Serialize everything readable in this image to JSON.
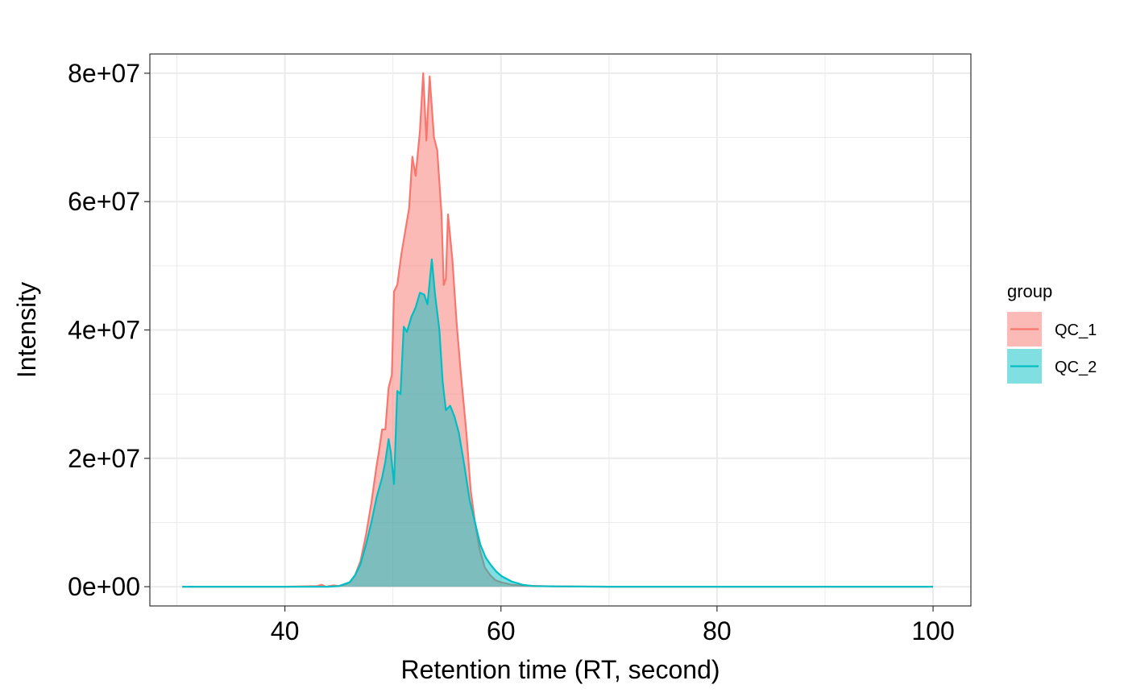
{
  "chart_data": {
    "type": "area",
    "title": "",
    "xlabel": "Retention time (RT, second)",
    "ylabel": "Intensity",
    "xlim": [
      27.5,
      103.5
    ],
    "ylim": [
      -3000000,
      83000000
    ],
    "x_ticks": [
      40,
      60,
      80,
      100
    ],
    "x_tick_labels": [
      "40",
      "60",
      "80",
      "100"
    ],
    "y_ticks": [
      0,
      20000000,
      40000000,
      60000000,
      80000000
    ],
    "y_tick_labels": [
      "0e+00",
      "2e+07",
      "4e+07",
      "6e+07",
      "8e+07"
    ],
    "grid": true,
    "legend": {
      "title": "group",
      "position": "right"
    },
    "series": [
      {
        "name": "QC_1",
        "color": "#F8766D",
        "fill": "#F8766D",
        "points": [
          [
            30.5,
            0
          ],
          [
            35,
            0
          ],
          [
            40,
            0
          ],
          [
            43,
            100000
          ],
          [
            43.4,
            300000
          ],
          [
            43.8,
            0
          ],
          [
            44.5,
            200000
          ],
          [
            45,
            100000
          ],
          [
            45.5,
            300000
          ],
          [
            46,
            700000
          ],
          [
            46.5,
            1800000
          ],
          [
            47,
            4000000
          ],
          [
            47.5,
            8000000
          ],
          [
            48,
            13000000
          ],
          [
            48.5,
            19000000
          ],
          [
            48.7,
            21000000
          ],
          [
            49,
            24500000
          ],
          [
            49.3,
            24500000
          ],
          [
            49.6,
            31000000
          ],
          [
            49.9,
            33000000
          ],
          [
            50.1,
            46000000
          ],
          [
            50.4,
            47000000
          ],
          [
            50.8,
            52000000
          ],
          [
            51.2,
            56000000
          ],
          [
            51.5,
            59000000
          ],
          [
            51.8,
            67000000
          ],
          [
            52.1,
            64000000
          ],
          [
            52.5,
            71000000
          ],
          [
            52.8,
            80000000
          ],
          [
            53.1,
            69500000
          ],
          [
            53.4,
            79500000
          ],
          [
            53.8,
            70000000
          ],
          [
            54.1,
            68000000
          ],
          [
            54.5,
            58000000
          ],
          [
            54.7,
            47000000
          ],
          [
            54.9,
            48000000
          ],
          [
            55.1,
            58000000
          ],
          [
            55.5,
            51000000
          ],
          [
            55.9,
            41000000
          ],
          [
            56.3,
            33000000
          ],
          [
            56.8,
            24000000
          ],
          [
            57.2,
            15000000
          ],
          [
            57.6,
            10000000
          ],
          [
            58,
            6000000
          ],
          [
            58.5,
            3000000
          ],
          [
            59,
            1800000
          ],
          [
            59.5,
            1000000
          ],
          [
            60,
            700000
          ],
          [
            61,
            300000
          ],
          [
            62,
            150000
          ],
          [
            65,
            50000
          ],
          [
            70,
            0
          ],
          [
            80,
            0
          ],
          [
            90,
            0
          ],
          [
            100,
            0
          ]
        ]
      },
      {
        "name": "QC_2",
        "color": "#00BFC4",
        "fill": "#00BFC4",
        "points": [
          [
            30.5,
            0
          ],
          [
            35,
            0
          ],
          [
            40,
            0
          ],
          [
            44,
            0
          ],
          [
            45,
            100000
          ],
          [
            46,
            700000
          ],
          [
            46.5,
            1800000
          ],
          [
            47,
            3500000
          ],
          [
            47.5,
            6500000
          ],
          [
            48,
            10000000
          ],
          [
            48.5,
            14000000
          ],
          [
            49,
            17000000
          ],
          [
            49.3,
            19500000
          ],
          [
            49.6,
            23000000
          ],
          [
            49.8,
            21000000
          ],
          [
            50.1,
            16000000
          ],
          [
            50.4,
            30500000
          ],
          [
            50.7,
            30000000
          ],
          [
            51,
            40500000
          ],
          [
            51.3,
            39700000
          ],
          [
            51.7,
            42000000
          ],
          [
            52.1,
            43500000
          ],
          [
            52.5,
            45800000
          ],
          [
            52.9,
            45500000
          ],
          [
            53.2,
            44000000
          ],
          [
            53.6,
            51000000
          ],
          [
            53.9,
            45500000
          ],
          [
            54.3,
            40000000
          ],
          [
            54.6,
            32000000
          ],
          [
            54.9,
            27500000
          ],
          [
            55.3,
            28200000
          ],
          [
            55.7,
            26500000
          ],
          [
            56.1,
            24000000
          ],
          [
            56.6,
            19000000
          ],
          [
            57.1,
            13500000
          ],
          [
            57.6,
            10000000
          ],
          [
            58.1,
            6500000
          ],
          [
            58.6,
            4500000
          ],
          [
            59.1,
            3300000
          ],
          [
            59.6,
            2300000
          ],
          [
            60.1,
            1600000
          ],
          [
            61,
            800000
          ],
          [
            62,
            300000
          ],
          [
            63,
            100000
          ],
          [
            65,
            50000
          ],
          [
            70,
            0
          ],
          [
            80,
            0
          ],
          [
            90,
            0
          ],
          [
            100,
            0
          ]
        ]
      }
    ]
  },
  "legend_items": [
    {
      "label": "QC_1",
      "color": "#F8766D"
    },
    {
      "label": "QC_2",
      "color": "#00BFC4"
    }
  ]
}
